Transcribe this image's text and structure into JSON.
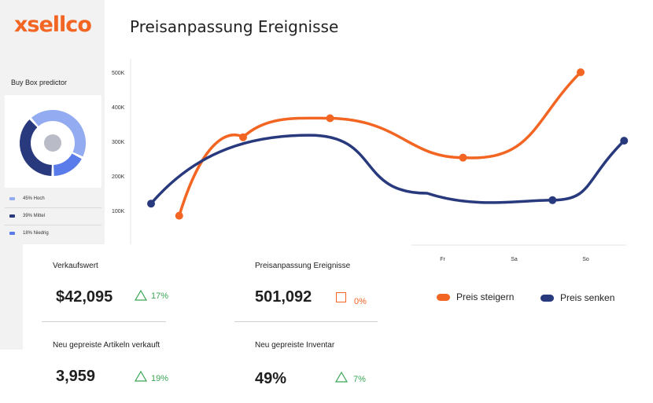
{
  "brand": {
    "logo_text": "xsellco",
    "accent": "#f26522",
    "navy": "#283a7d"
  },
  "page_title": "Preisanpassung Ereignisse",
  "sidebar": {
    "buy_box_title": "Buy Box predictor",
    "legend": [
      {
        "label": "45% Hoch",
        "color": "#93abf0"
      },
      {
        "label": "39% Mittel",
        "color": "#283a7d"
      },
      {
        "label": "18% Niedrig",
        "color": "#5a7bea"
      }
    ],
    "donut_chart": {
      "type": "pie",
      "values": [
        45,
        39,
        18
      ],
      "labels": [
        "Hoch",
        "Mittel",
        "Niedrig"
      ]
    }
  },
  "chart_data": {
    "type": "line",
    "y_ticks": [
      "500K",
      "400K",
      "300K",
      "200K",
      "100K"
    ],
    "x_ticks": [
      "Fr",
      "Sa",
      "So"
    ],
    "ylim": [
      0,
      550000
    ],
    "series": [
      {
        "name": "Preis steigern",
        "color": "#f26522",
        "points": [
          [
            0.95,
            85000
          ],
          [
            2.2,
            312000
          ],
          [
            3.9,
            367000
          ],
          [
            6.5,
            253000
          ],
          [
            8.8,
            500000
          ]
        ]
      },
      {
        "name": "Preis senken",
        "color": "#283a7d",
        "points": [
          [
            0.4,
            120000
          ],
          [
            8.25,
            130000
          ],
          [
            9.65,
            302000
          ]
        ]
      }
    ]
  },
  "stats": {
    "verkaufswert": {
      "label": "Verkaufswert",
      "value": "$42,095",
      "delta": "17%"
    },
    "preisanpassung": {
      "label": "Preisanpassung Ereignisse",
      "value": "501,092",
      "delta": "0%"
    },
    "artikel": {
      "label": "Neu gepreiste Artikeln verkauft",
      "value": "3,959",
      "delta": "19%"
    },
    "inventar": {
      "label": "Neu gepreiste Inventar",
      "value": "49%",
      "delta": "7%"
    }
  },
  "legend": {
    "up_label": "Preis steigern",
    "down_label": "Preis senken"
  }
}
